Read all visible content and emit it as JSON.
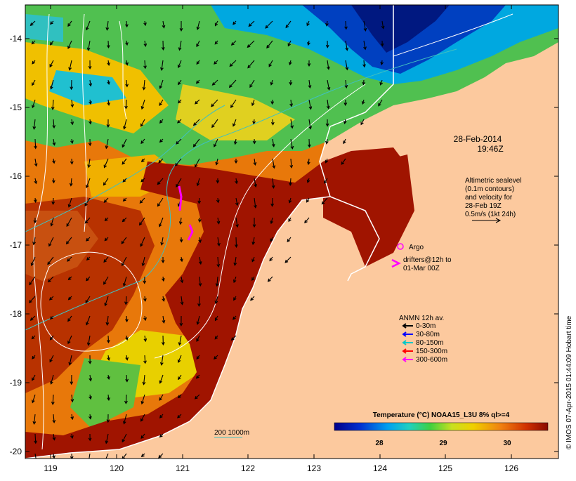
{
  "map": {
    "lat_ticks": [
      "-14",
      "-15",
      "-16",
      "-17",
      "-18",
      "-19",
      "-20"
    ],
    "lon_ticks": [
      "119",
      "120",
      "121",
      "122",
      "123",
      "124",
      "125",
      "126"
    ],
    "timestamp": [
      "28-Feb-2014",
      "19:46Z"
    ],
    "altimetry_note": [
      "Altimetric sealevel",
      "(0.1m contours)",
      "and velocity for",
      "28-Feb 19Z",
      "0.5m/s (1kt 24h)"
    ],
    "argo_label": "Argo",
    "drifters_label": [
      "drifters@12h to",
      "01-Mar 00Z"
    ],
    "anmn_title": "ANMN 12h av.",
    "anmn_legend": [
      {
        "label": "0-30m",
        "color": "#000000"
      },
      {
        "label": "30-80m",
        "color": "#0000ff"
      },
      {
        "label": "80-150m",
        "color": "#00c8c8"
      },
      {
        "label": "150-300m",
        "color": "#ff0000"
      },
      {
        "label": "300-600m",
        "color": "#ff00ff"
      }
    ],
    "isobath_label": "200  1000m",
    "colorbar_title": "Temperature (°C) NOAA15_L3U 8% ql>=4",
    "colorbar_ticks": [
      "28",
      "29",
      "30"
    ],
    "credit": "© IMOS 07-Apr-2015 01:44:09 Hobart time",
    "colors": {
      "land": "#fcc99e",
      "warm": "#a01400",
      "orange": "#e8780a",
      "yellow": "#f0d000",
      "green": "#40c040",
      "cyan": "#00c8e8",
      "blue": "#0050c8",
      "navy": "#001080"
    }
  }
}
